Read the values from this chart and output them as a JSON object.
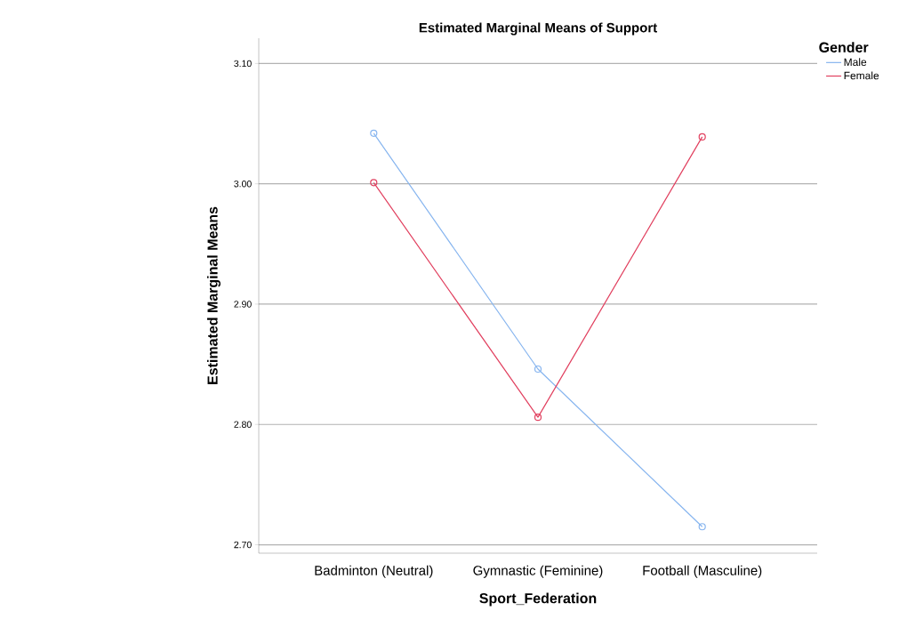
{
  "chart_data": {
    "type": "line",
    "title": "Estimated Marginal Means of Support",
    "xlabel": "Sport_Federation",
    "ylabel": "Estimated Marginal Means",
    "legend_title": "Gender",
    "categories": [
      "Badminton (Neutral)",
      "Gymnastic (Feminine)",
      "Football (Masculine)"
    ],
    "series": [
      {
        "name": "Male",
        "color": "#87b5ef",
        "values": [
          3.042,
          2.846,
          2.715
        ]
      },
      {
        "name": "Female",
        "color": "#e1405f",
        "values": [
          3.001,
          2.806,
          3.039
        ]
      }
    ],
    "ylim": [
      2.693,
      3.121
    ],
    "yticks": [
      {
        "value": 2.7,
        "label": "2.70"
      },
      {
        "value": 2.8,
        "label": "2.80"
      },
      {
        "value": 2.9,
        "label": "2.90"
      },
      {
        "value": 3.0,
        "label": "3.00"
      },
      {
        "value": 3.1,
        "label": "3.10"
      }
    ],
    "grid": "y",
    "legend": "top right",
    "marker": "circle",
    "line_style": "solid"
  }
}
